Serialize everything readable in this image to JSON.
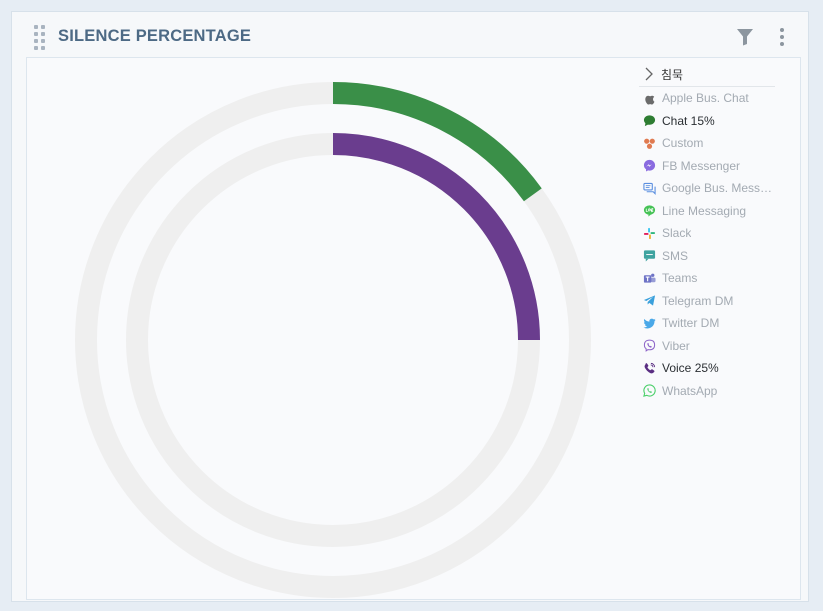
{
  "widget": {
    "title": "SILENCE PERCENTAGE"
  },
  "legend": {
    "header": "침묵",
    "items": [
      {
        "label": "Apple Bus. Chat",
        "icon": "apple-icon",
        "color": "#6b6b6b",
        "active": false
      },
      {
        "label": "Chat 15%",
        "icon": "chat-icon",
        "color": "#2e7d32",
        "active": true
      },
      {
        "label": "Custom",
        "icon": "custom-icon",
        "color": "#e07a50",
        "active": false
      },
      {
        "label": "FB Messenger",
        "icon": "messenger-icon",
        "color": "#8a6be0",
        "active": false
      },
      {
        "label": "Google Bus. Messa...",
        "icon": "google-business-icon",
        "color": "#5b8fe0",
        "active": false
      },
      {
        "label": "Line Messaging",
        "icon": "line-icon",
        "color": "#45c255",
        "active": false
      },
      {
        "label": "Slack",
        "icon": "slack-icon",
        "color": "#d04f8a",
        "active": false
      },
      {
        "label": "SMS",
        "icon": "sms-icon",
        "color": "#3fa3a0",
        "active": false
      },
      {
        "label": "Teams",
        "icon": "teams-icon",
        "color": "#6e73c6",
        "active": false
      },
      {
        "label": "Telegram DM",
        "icon": "telegram-icon",
        "color": "#3aa0dc",
        "active": false
      },
      {
        "label": "Twitter DM",
        "icon": "twitter-icon",
        "color": "#4aa8e8",
        "active": false
      },
      {
        "label": "Viber",
        "icon": "viber-icon",
        "color": "#8e65c8",
        "active": false
      },
      {
        "label": "Voice 25%",
        "icon": "phone-icon",
        "color": "#5a2e82",
        "active": true
      },
      {
        "label": "WhatsApp",
        "icon": "whatsapp-icon",
        "color": "#4bcf6a",
        "active": false
      }
    ]
  },
  "chart_data": {
    "type": "radial-bar",
    "max": 100,
    "track_color": "#efefef",
    "series": [
      {
        "name": "Chat",
        "value": 15,
        "color": "#3a8f48",
        "ring": "outer"
      },
      {
        "name": "Voice",
        "value": 25,
        "color": "#6a3d8e",
        "ring": "inner"
      }
    ],
    "legend_position": "right"
  }
}
